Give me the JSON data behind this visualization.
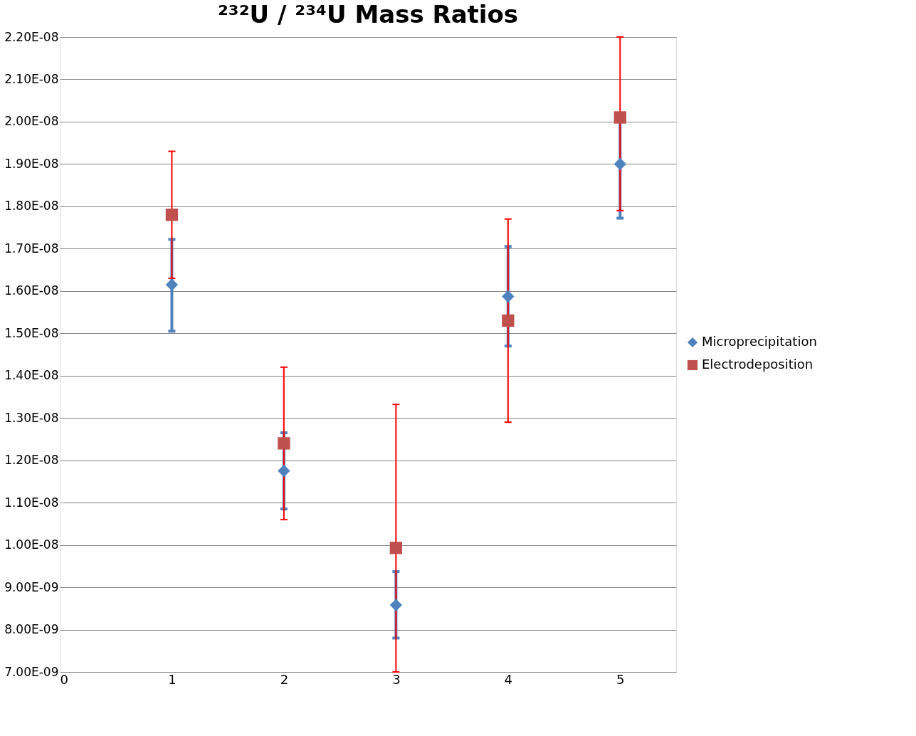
{
  "chart_data": {
    "type": "scatter",
    "title": "²³²U / ²³⁴U Mass Ratios",
    "x": [
      1,
      2,
      3,
      4,
      5
    ],
    "series": [
      {
        "name": "Microprecipitation",
        "color": "#4f81bd",
        "marker": "diamond",
        "values": [
          1.615e-08,
          1.175e-08,
          8.58e-09,
          1.587e-08,
          1.9e-08
        ],
        "errors": [
          [
            1.505e-08,
            1.722e-08
          ],
          [
            1.085e-08,
            1.265e-08
          ],
          [
            7.8e-09,
            9.37e-09
          ],
          [
            1.47e-08,
            1.705e-08
          ],
          [
            1.772e-08,
            2.02e-08
          ]
        ]
      },
      {
        "name": "Electrodeposition",
        "color": "#c0504d",
        "marker": "square",
        "values": [
          1.78e-08,
          1.24e-08,
          9.93e-09,
          1.53e-08,
          2.01e-08
        ],
        "errors": [
          [
            1.63e-08,
            1.93e-08
          ],
          [
            1.06e-08,
            1.42e-08
          ],
          [
            7e-09,
            1.332e-08
          ],
          [
            1.29e-08,
            1.77e-08
          ],
          [
            1.79e-08,
            2.2e-08
          ]
        ]
      }
    ],
    "xlim": [
      0,
      5.5
    ],
    "xticks": [
      0,
      1,
      2,
      3,
      4,
      5
    ],
    "ylim": [
      7e-09,
      2.2e-08
    ],
    "yticks": [
      {
        "value": 7e-09,
        "label": "7.00E-09"
      },
      {
        "value": 8e-09,
        "label": "8.00E-09"
      },
      {
        "value": 9e-09,
        "label": "9.00E-09"
      },
      {
        "value": 1e-08,
        "label": "1.00E-08"
      },
      {
        "value": 1.1e-08,
        "label": "1.10E-08"
      },
      {
        "value": 1.2e-08,
        "label": "1.20E-08"
      },
      {
        "value": 1.3e-08,
        "label": "1.30E-08"
      },
      {
        "value": 1.4e-08,
        "label": "1.40E-08"
      },
      {
        "value": 1.5e-08,
        "label": "1.50E-08"
      },
      {
        "value": 1.6e-08,
        "label": "1.60E-08"
      },
      {
        "value": 1.7e-08,
        "label": "1.70E-08"
      },
      {
        "value": 1.8e-08,
        "label": "1.80E-08"
      },
      {
        "value": 1.9e-08,
        "label": "1.90E-08"
      },
      {
        "value": 2e-08,
        "label": "2.00E-08"
      },
      {
        "value": 2.1e-08,
        "label": "2.10E-08"
      },
      {
        "value": 2.2e-08,
        "label": "2.20E-08"
      }
    ],
    "grid": "y",
    "legend": "right"
  }
}
